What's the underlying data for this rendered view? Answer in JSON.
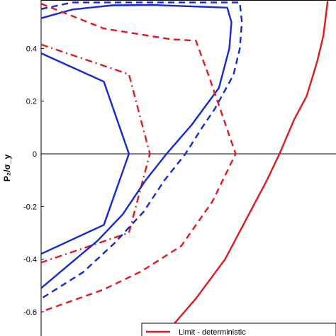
{
  "chart_data": {
    "type": "line",
    "ylabel": "P₂/σ_y",
    "ylim": [
      -0.7,
      0.58
    ],
    "y_ticks": [
      "0.4",
      "0.2",
      "0",
      "-0.2",
      "-0.4",
      "-0.6"
    ],
    "grid": false,
    "legend": {
      "placement": "bottom-right",
      "entries": [
        "Limit - deterministic"
      ]
    },
    "colors": {
      "blue": "#1428d4",
      "red": "#e0191f",
      "axis": "#000000"
    },
    "series": [
      {
        "color": "#1428d4",
        "dash": "solid",
        "points": [
          [
            -0.52,
            0.382
          ],
          [
            -0.22,
            0.274
          ],
          [
            -0.1,
            0.0
          ],
          [
            -0.22,
            -0.27
          ],
          [
            -0.52,
            -0.38
          ]
        ]
      },
      {
        "color": "#e0191f",
        "dash": "dashdot",
        "points": [
          [
            -0.52,
            0.415
          ],
          [
            -0.1,
            0.302
          ],
          [
            0.0,
            0.0
          ],
          [
            -0.1,
            -0.3
          ],
          [
            -0.52,
            -0.413
          ]
        ]
      },
      {
        "color": "#1428d4",
        "dash": "solid",
        "points": [
          [
            -0.52,
            0.515
          ],
          [
            -0.37,
            0.548
          ],
          [
            -0.18,
            0.564
          ],
          [
            0.02,
            0.565
          ],
          [
            0.37,
            0.555
          ],
          [
            0.39,
            0.5
          ],
          [
            0.38,
            0.4
          ],
          [
            0.33,
            0.25
          ],
          [
            0.2,
            0.11
          ],
          [
            0.08,
            0.0
          ],
          [
            -0.02,
            -0.1
          ],
          [
            -0.13,
            -0.23
          ],
          [
            -0.25,
            -0.33
          ],
          [
            -0.4,
            -0.43
          ],
          [
            -0.52,
            -0.51
          ]
        ]
      },
      {
        "color": "#1428d4",
        "dash": "dashed",
        "points": [
          [
            -0.52,
            0.55
          ],
          [
            -0.37,
            0.575
          ],
          [
            0.43,
            0.575
          ],
          [
            0.44,
            0.5
          ],
          [
            0.43,
            0.4
          ],
          [
            0.4,
            0.3
          ],
          [
            0.31,
            0.17
          ],
          [
            0.25,
            0.1
          ],
          [
            0.17,
            0.0
          ],
          [
            0.07,
            -0.1
          ],
          [
            -0.03,
            -0.22
          ],
          [
            -0.17,
            -0.34
          ],
          [
            -0.32,
            -0.45
          ],
          [
            -0.52,
            -0.55
          ]
        ]
      },
      {
        "color": "#e0191f",
        "dash": "dashed",
        "points": [
          [
            -0.52,
            0.57
          ],
          [
            -0.22,
            0.476
          ],
          [
            0.1,
            0.435
          ],
          [
            0.22,
            0.43
          ],
          [
            0.28,
            0.3
          ],
          [
            0.41,
            0.0
          ],
          [
            0.3,
            -0.18
          ],
          [
            0.15,
            -0.35
          ],
          [
            -0.04,
            -0.446
          ],
          [
            -0.22,
            -0.515
          ],
          [
            -0.52,
            -0.6
          ]
        ]
      },
      {
        "color": "#e0191f",
        "dash": "solid",
        "points": [
          [
            0.85,
            0.58
          ],
          [
            0.83,
            0.45
          ],
          [
            0.8,
            0.35
          ],
          [
            0.75,
            0.22
          ],
          [
            0.69,
            0.13
          ],
          [
            0.62,
            0.0
          ],
          [
            0.56,
            -0.1
          ],
          [
            0.48,
            -0.22
          ],
          [
            0.36,
            -0.4
          ],
          [
            0.22,
            -0.55
          ],
          [
            0.1,
            -0.66
          ],
          [
            0.02,
            -0.7
          ]
        ]
      }
    ],
    "x_range": [
      -0.52,
      0.89
    ]
  }
}
